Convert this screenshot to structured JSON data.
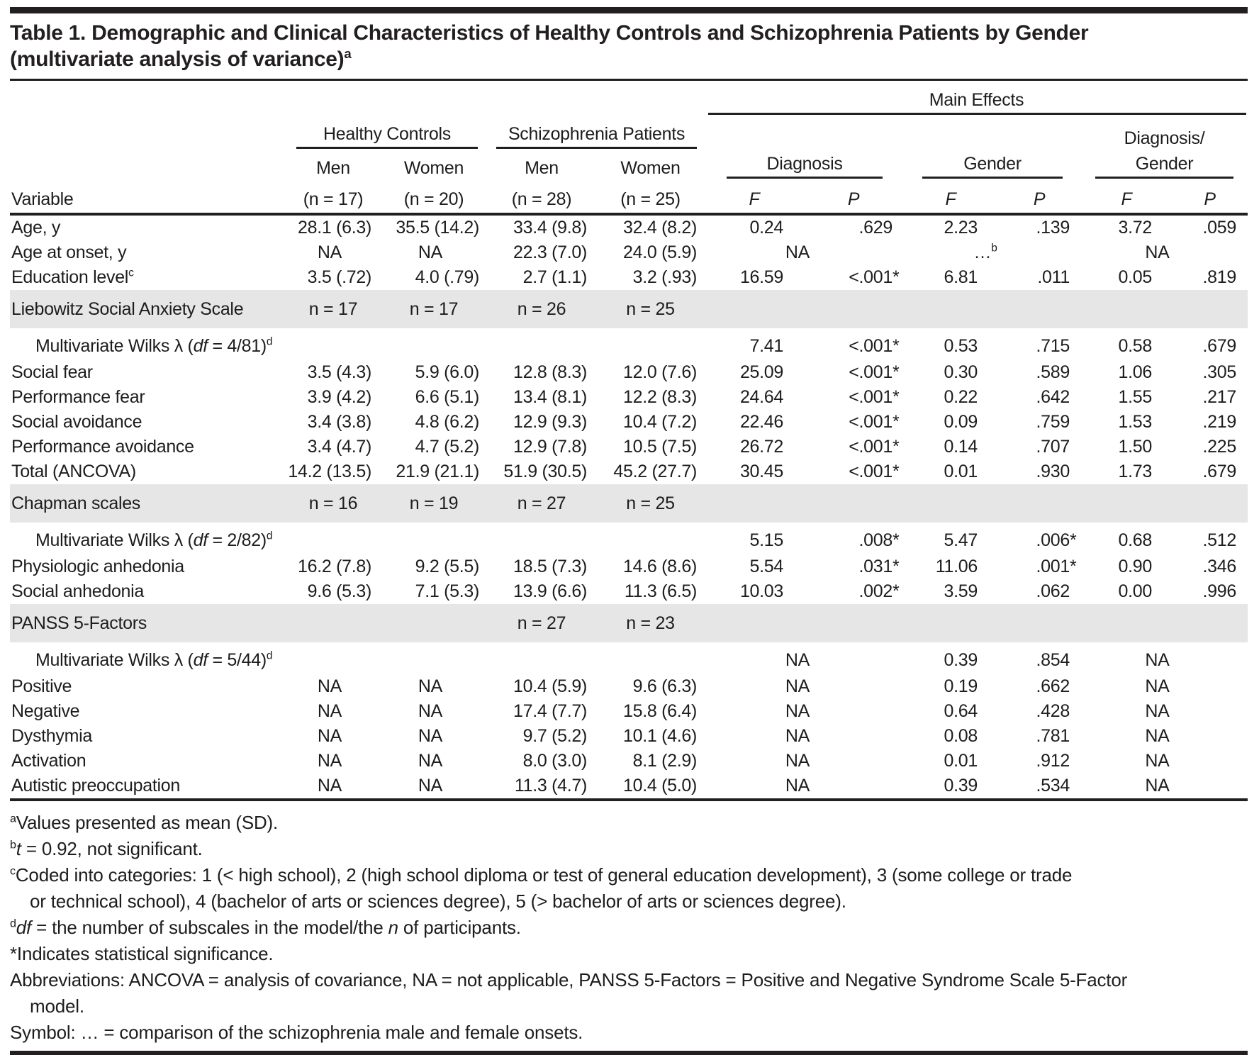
{
  "title": {
    "segments": [
      "Table 1. Demographic and Clinical Characteristics of Healthy Controls and Schizophrenia Patients by Gender",
      {
        "br": 1
      },
      "(multivariate analysis of variance)",
      {
        "sup": "a"
      }
    ]
  },
  "table": {
    "col_groups": {
      "main_effects": "Main Effects",
      "healthy": "Healthy Controls",
      "schizo": "Schizophrenia Patients",
      "diagnosis": "Diagnosis",
      "gender": "Gender",
      "diag_gender_line1": "Diagnosis/",
      "diag_gender_line2": "Gender"
    },
    "sub_headers": {
      "variable": "Variable",
      "men": "Men",
      "women": "Women",
      "n_hc_men": "(n = 17)",
      "n_hc_women": "(n = 20)",
      "n_sp_men": "(n = 28)",
      "n_sp_women": "(n = 25)",
      "f": "F",
      "p": "P"
    },
    "rows": [
      {
        "type": "data",
        "label": [
          "Age, y"
        ],
        "msd": [
          "28.1 (6.3)",
          "35.5 (14.2)",
          "33.4 (9.8)",
          "32.4 (8.2)"
        ],
        "fp": [
          "0.24",
          ".629",
          "2.23",
          ".139",
          "3.72",
          ".059"
        ]
      },
      {
        "type": "data_span",
        "label": [
          "Age at onset, y"
        ],
        "msd": [
          "NA",
          "NA",
          "22.3 (7.0)",
          "24.0 (5.9)"
        ],
        "spans": [
          [
            "NA"
          ],
          [
            "…",
            {
              "sup": "b"
            }
          ],
          [
            "NA"
          ]
        ]
      },
      {
        "type": "data",
        "label": [
          "Education level",
          {
            "sup": "c"
          }
        ],
        "msd": [
          "3.5 (.72)",
          "4.0 (.79)",
          "2.7 (1.1)",
          "3.2 (.93)"
        ],
        "fp": [
          "16.59",
          "<.001*",
          "6.81",
          ".011",
          "0.05",
          ".819"
        ]
      },
      {
        "type": "section",
        "label": [
          "Liebowitz Social Anxiety Scale"
        ],
        "ns": [
          "n = 17",
          "n = 17",
          "n = 26",
          "n = 25"
        ]
      },
      {
        "type": "wilks",
        "label": [
          "Multivariate Wilks λ (",
          {
            "i": "df"
          },
          " = 4/81)",
          {
            "sup": "d"
          }
        ],
        "fp": [
          "7.41",
          "<.001*",
          "0.53",
          ".715",
          "0.58",
          ".679"
        ]
      },
      {
        "type": "data",
        "label": [
          "Social fear"
        ],
        "msd": [
          "3.5 (4.3)",
          "5.9 (6.0)",
          "12.8 (8.3)",
          "12.0 (7.6)"
        ],
        "fp": [
          "25.09",
          "<.001*",
          "0.30",
          ".589",
          "1.06",
          ".305"
        ]
      },
      {
        "type": "data",
        "label": [
          "Performance fear"
        ],
        "msd": [
          "3.9 (4.2)",
          "6.6 (5.1)",
          "13.4 (8.1)",
          "12.2 (8.3)"
        ],
        "fp": [
          "24.64",
          "<.001*",
          "0.22",
          ".642",
          "1.55",
          ".217"
        ]
      },
      {
        "type": "data",
        "label": [
          "Social avoidance"
        ],
        "msd": [
          "3.4 (3.8)",
          "4.8 (6.2)",
          "12.9 (9.3)",
          "10.4 (7.2)"
        ],
        "fp": [
          "22.46",
          "<.001*",
          "0.09",
          ".759",
          "1.53",
          ".219"
        ]
      },
      {
        "type": "data",
        "label": [
          "Performance avoidance"
        ],
        "msd": [
          "3.4 (4.7)",
          "4.7 (5.2)",
          "12.9 (7.8)",
          "10.5 (7.5)"
        ],
        "fp": [
          "26.72",
          "<.001*",
          "0.14",
          ".707",
          "1.50",
          ".225"
        ]
      },
      {
        "type": "data",
        "label": [
          "Total (ANCOVA)"
        ],
        "msd": [
          "14.2 (13.5)",
          "21.9 (21.1)",
          "51.9 (30.5)",
          "45.2 (27.7)"
        ],
        "fp": [
          "30.45",
          "<.001*",
          "0.01",
          ".930",
          "1.73",
          ".679"
        ]
      },
      {
        "type": "section",
        "label": [
          "Chapman scales"
        ],
        "ns": [
          "n = 16",
          "n = 19",
          "n = 27",
          "n = 25"
        ]
      },
      {
        "type": "wilks",
        "label": [
          "Multivariate Wilks λ (",
          {
            "i": "df"
          },
          " = 2/82)",
          {
            "sup": "d"
          }
        ],
        "fp": [
          "5.15",
          ".008*",
          "5.47",
          ".006*",
          "0.68",
          ".512"
        ]
      },
      {
        "type": "data",
        "label": [
          "Physiologic anhedonia"
        ],
        "msd": [
          "16.2 (7.8)",
          "9.2 (5.5)",
          "18.5 (7.3)",
          "14.6 (8.6)"
        ],
        "fp": [
          "5.54",
          ".031*",
          "11.06",
          ".001*",
          "0.90",
          ".346"
        ]
      },
      {
        "type": "data",
        "label": [
          "Social anhedonia"
        ],
        "msd": [
          "9.6 (5.3)",
          "7.1 (5.3)",
          "13.9 (6.6)",
          "11.3 (6.5)"
        ],
        "fp": [
          "10.03",
          ".002*",
          "3.59",
          ".062",
          "0.00",
          ".996"
        ]
      },
      {
        "type": "section",
        "label": [
          "PANSS 5-Factors"
        ],
        "ns": [
          "",
          "",
          "n = 27",
          "n = 23"
        ]
      },
      {
        "type": "wilks_span",
        "label": [
          "Multivariate Wilks λ (",
          {
            "i": "df"
          },
          " = 5/44)",
          {
            "sup": "d"
          }
        ],
        "gfp": [
          "0.39",
          ".854"
        ],
        "spans": [
          [
            "NA"
          ],
          [
            "NA"
          ]
        ]
      },
      {
        "type": "panss",
        "label": [
          "Positive"
        ],
        "msd": [
          "NA",
          "NA",
          "10.4 (5.9)",
          "9.6 (6.3)"
        ],
        "gfp": [
          "0.19",
          ".662"
        ],
        "spans": [
          [
            "NA"
          ],
          [
            "NA"
          ]
        ]
      },
      {
        "type": "panss",
        "label": [
          "Negative"
        ],
        "msd": [
          "NA",
          "NA",
          "17.4 (7.7)",
          "15.8 (6.4)"
        ],
        "gfp": [
          "0.64",
          ".428"
        ],
        "spans": [
          [
            "NA"
          ],
          [
            "NA"
          ]
        ]
      },
      {
        "type": "panss",
        "label": [
          "Dysthymia"
        ],
        "msd": [
          "NA",
          "NA",
          "9.7 (5.2)",
          "10.1 (4.6)"
        ],
        "gfp": [
          "0.08",
          ".781"
        ],
        "spans": [
          [
            "NA"
          ],
          [
            "NA"
          ]
        ]
      },
      {
        "type": "panss",
        "label": [
          "Activation"
        ],
        "msd": [
          "NA",
          "NA",
          "8.0 (3.0)",
          "8.1 (2.9)"
        ],
        "gfp": [
          "0.01",
          ".912"
        ],
        "spans": [
          [
            "NA"
          ],
          [
            "NA"
          ]
        ]
      },
      {
        "type": "panss",
        "label": [
          "Autistic preoccupation"
        ],
        "msd": [
          "NA",
          "NA",
          "11.3 (4.7)",
          "10.4 (5.0)"
        ],
        "gfp": [
          "0.39",
          ".534"
        ],
        "spans": [
          [
            "NA"
          ],
          [
            "NA"
          ]
        ]
      }
    ]
  },
  "footnotes": [
    [
      {
        "sup": "a"
      },
      "Values presented as mean (SD)."
    ],
    [
      {
        "sup": "b"
      },
      {
        "i": "t"
      },
      " = 0.92, not significant."
    ],
    [
      {
        "sup": "c"
      },
      "Coded into categories: 1 (< high school), 2 (high school diploma or test of general education development), 3 (some college or trade",
      {
        "br": 1
      },
      "or technical school), 4 (bachelor of arts or sciences degree), 5 (> bachelor of arts or sciences degree)."
    ],
    [
      {
        "sup": "d"
      },
      {
        "i": "df"
      },
      " = the number of subscales in the model/the ",
      {
        "i": "n"
      },
      " of participants."
    ],
    [
      "*Indicates statistical significance."
    ],
    [
      "Abbreviations: ANCOVA = analysis of covariance, NA = not applicable, PANSS 5-Factors = Positive and Negative Syndrome Scale 5-Factor",
      {
        "br": 1
      },
      "model."
    ],
    [
      "Symbol: … = comparison of the schizophrenia male and female onsets."
    ]
  ],
  "colors": {
    "text": "#1d1d1d",
    "rule": "#231f20",
    "section_bg": "#e6e6e6"
  }
}
